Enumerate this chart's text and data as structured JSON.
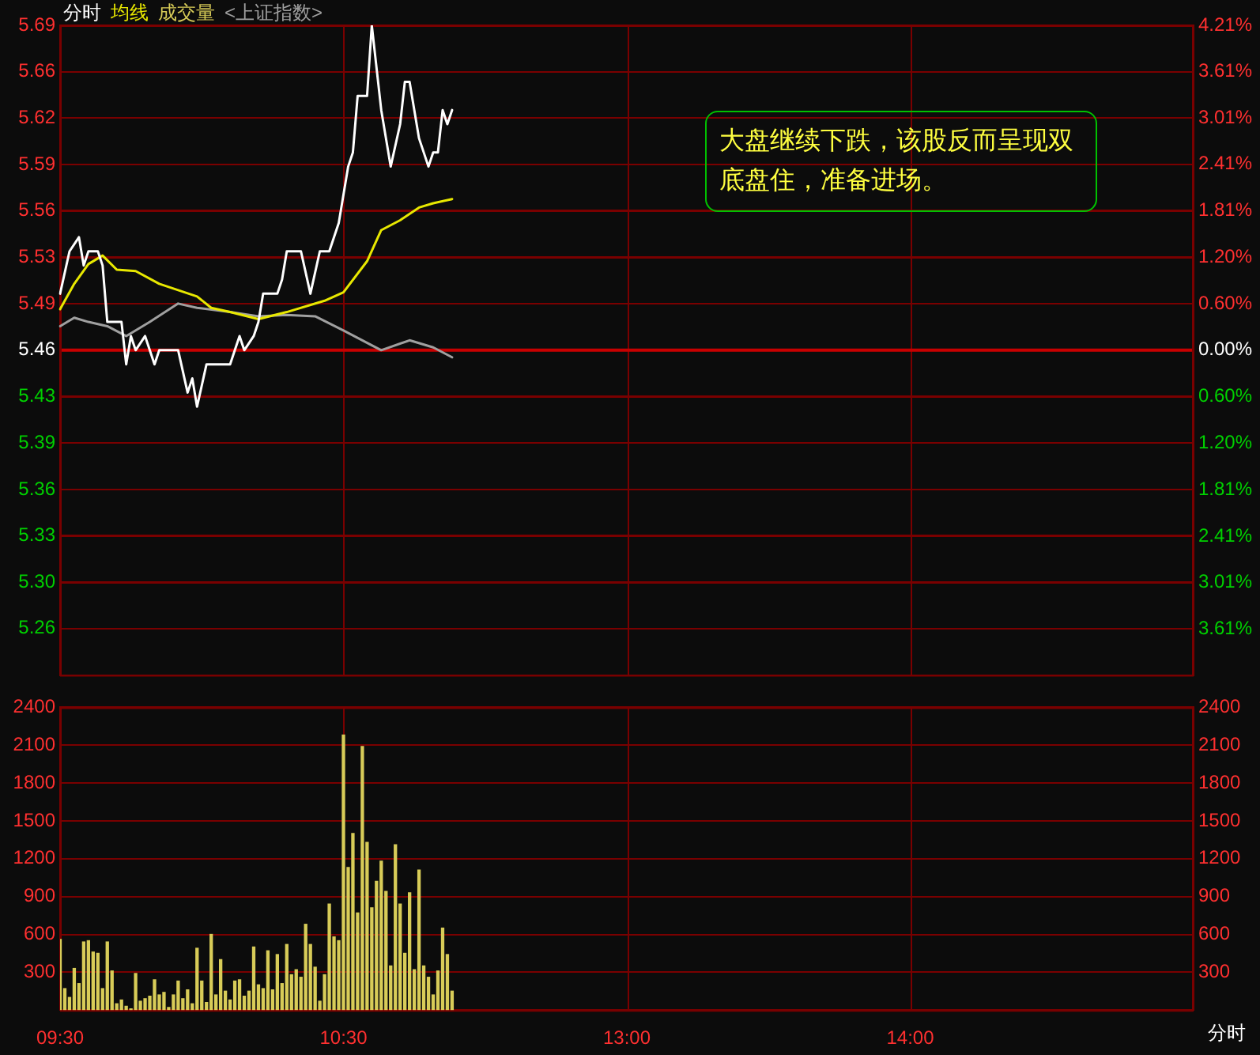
{
  "chart_data": [
    {
      "type": "line",
      "legend": "top left",
      "grid": true,
      "marker": "none",
      "line_style": "solid",
      "tick_labels": "y",
      "categories": [
        null,
        null,
        null,
        null,
        null,
        null,
        null,
        null,
        null,
        null,
        null,
        null,
        null,
        null,
        null,
        null,
        null,
        null,
        null,
        null,
        null,
        null,
        null,
        null,
        null,
        null,
        null,
        null,
        null,
        null,
        null,
        null,
        null,
        null,
        null,
        null,
        null,
        null,
        null,
        null,
        null,
        null,
        null,
        null,
        null,
        null,
        null,
        null,
        null,
        null,
        null,
        null,
        null,
        null,
        null,
        null,
        null,
        null,
        null,
        null,
        null,
        null,
        null,
        null,
        null,
        null,
        null,
        null,
        null,
        null,
        null,
        null,
        null,
        null,
        null,
        null,
        null,
        null,
        null,
        null,
        null,
        null,
        null,
        null,
        null,
        null,
        null,
        null,
        null,
        null,
        null,
        null,
        null,
        null,
        null,
        null,
        null,
        null,
        null,
        null,
        null,
        null,
        null,
        null,
        null,
        null,
        null,
        null,
        null,
        null,
        null,
        null,
        null,
        null,
        null,
        null,
        null,
        null,
        null,
        null,
        null,
        null,
        null,
        null,
        null,
        null,
        null,
        null,
        null,
        null,
        null,
        null,
        null,
        null,
        null,
        null,
        null,
        null,
        null,
        null,
        null,
        null,
        null,
        null,
        null,
        null,
        null,
        null,
        null,
        null,
        null,
        null,
        null,
        null,
        null,
        null,
        null,
        null,
        null,
        null,
        null,
        null,
        null,
        null,
        null,
        null,
        null,
        null,
        null,
        null,
        null,
        null,
        null,
        null,
        null,
        null,
        null,
        null,
        null,
        null,
        null,
        null,
        null,
        null,
        null,
        null,
        null,
        null,
        null,
        null,
        null,
        null,
        null,
        null,
        null,
        null,
        null,
        null,
        null,
        null,
        null,
        null,
        null,
        null,
        null,
        null,
        null,
        null,
        null,
        null,
        null,
        null,
        null,
        null,
        null,
        null,
        null,
        null,
        null,
        null,
        null,
        null,
        null,
        null,
        null,
        null,
        null,
        null,
        null,
        null,
        null,
        null,
        null,
        null,
        null,
        null,
        null,
        null,
        null,
        null,
        null
      ],
      "ylim": [
        5.23,
        5.69
      ],
      "yticks": [
        {
          "value": 5.69,
          "label": "5.69"
        },
        {
          "value": 5.6571,
          "label": "5.66"
        },
        {
          "value": 5.6243,
          "label": "5.62"
        },
        {
          "value": 5.5914,
          "label": "5.59"
        },
        {
          "value": 5.5586,
          "label": "5.56"
        },
        {
          "value": 5.5257,
          "label": "5.53"
        },
        {
          "value": 5.4929,
          "label": "5.49"
        },
        {
          "value": 5.46,
          "label": "5.46"
        },
        {
          "value": 5.4271,
          "label": "5.43"
        },
        {
          "value": 5.3943,
          "label": "5.39"
        },
        {
          "value": 5.3614,
          "label": "5.36"
        },
        {
          "value": 5.3286,
          "label": "5.33"
        },
        {
          "value": 5.2957,
          "label": "5.30"
        },
        {
          "value": 5.2629,
          "label": "5.26"
        }
      ],
      "y2lim": [
        -4.21,
        4.21
      ],
      "y2ticks": [
        {
          "value": 4.21,
          "label": "4.21%"
        },
        {
          "value": 3.61,
          "label": "3.61%"
        },
        {
          "value": 3.01,
          "label": "3.01%"
        },
        {
          "value": 2.41,
          "label": "2.41%"
        },
        {
          "value": 1.81,
          "label": "1.81%"
        },
        {
          "value": 1.2,
          "label": "1.20%"
        },
        {
          "value": 0.6,
          "label": "0.60%"
        },
        {
          "value": 0,
          "label": "0.00%"
        },
        {
          "value": -0.6,
          "label": "0.60%"
        },
        {
          "value": -1.2,
          "label": "1.20%"
        },
        {
          "value": -1.81,
          "label": "1.81%"
        },
        {
          "value": -2.41,
          "label": "2.41%"
        },
        {
          "value": -3.01,
          "label": "3.01%"
        },
        {
          "value": -3.61,
          "label": "3.61%"
        }
      ],
      "ref_lines": [
        {
          "axis": "y",
          "value": 5.46,
          "color": "#c80000"
        }
      ],
      "annotations": [
        "大盘继续下跌，该股反而呈现双底盘住，准备进场。"
      ],
      "series": [
        {
          "name": "分时",
          "color": "#ffffff",
          "values": [
            5.5,
            null,
            5.53,
            null,
            5.54,
            5.52,
            5.53,
            null,
            5.53,
            5.52,
            5.48,
            null,
            null,
            5.48,
            5.45,
            5.47,
            5.46,
            null,
            5.47,
            null,
            5.45,
            5.46,
            null,
            null,
            null,
            5.46,
            null,
            5.43,
            5.44,
            5.42,
            null,
            5.45,
            null,
            5.45,
            null,
            null,
            5.45,
            5.46,
            5.47,
            5.46,
            null,
            5.47,
            5.48,
            5.5,
            null,
            null,
            5.5,
            5.51,
            5.53,
            null,
            null,
            5.53,
            null,
            5.5,
            null,
            5.53,
            null,
            5.53,
            null,
            5.55,
            null,
            5.59,
            5.6,
            5.64,
            null,
            5.64,
            5.69,
            null,
            5.63,
            null,
            5.59,
            null,
            5.62,
            5.65,
            5.65,
            null,
            5.61,
            null,
            5.59,
            5.6,
            5.6,
            5.63,
            5.62,
            5.63,
            null,
            null,
            null,
            null,
            null,
            null,
            null,
            null,
            null,
            null,
            null,
            null,
            null,
            null,
            null,
            null,
            null,
            null,
            null,
            null,
            null,
            null,
            null,
            null,
            null,
            null,
            null,
            null,
            null,
            null,
            null,
            null,
            null,
            null,
            null,
            null,
            null,
            null,
            null,
            null,
            null,
            null,
            null,
            null,
            null,
            null,
            null,
            null,
            null,
            null,
            null,
            null,
            null,
            null,
            null,
            null,
            null,
            null,
            null,
            null,
            null,
            null,
            null,
            null,
            null,
            null,
            null,
            null,
            null,
            null,
            null,
            null,
            null,
            null,
            null,
            null,
            null,
            null,
            null,
            null,
            null,
            null,
            null,
            null,
            null,
            null,
            null,
            null,
            null,
            null,
            null,
            null,
            null,
            null,
            null,
            null,
            null,
            null,
            null,
            null,
            null,
            null,
            null,
            null,
            null,
            null,
            null,
            null,
            null,
            null,
            null,
            null,
            null,
            null,
            null,
            null,
            null,
            null,
            null,
            null,
            null,
            null,
            null,
            null,
            null,
            null,
            null,
            null,
            null,
            null,
            null,
            null,
            null,
            null,
            null,
            null,
            null,
            null,
            null,
            null,
            null,
            null,
            null,
            null,
            null,
            null,
            null,
            null,
            null,
            null,
            null,
            null,
            null,
            null,
            null,
            null,
            null
          ]
        },
        {
          "name": "均线",
          "color": "#e8e800",
          "values": [
            5.489,
            null,
            null,
            5.507,
            null,
            null,
            5.521,
            null,
            null,
            5.527,
            null,
            null,
            5.517,
            null,
            null,
            null,
            5.516,
            null,
            null,
            null,
            null,
            5.507,
            null,
            null,
            null,
            null,
            null,
            null,
            null,
            5.498,
            null,
            null,
            5.49,
            null,
            null,
            null,
            5.487,
            null,
            null,
            null,
            null,
            null,
            5.482,
            null,
            null,
            null,
            null,
            null,
            5.487,
            null,
            null,
            null,
            null,
            null,
            null,
            null,
            5.495,
            null,
            null,
            null,
            5.501,
            null,
            null,
            null,
            null,
            5.523,
            null,
            null,
            5.545,
            null,
            null,
            null,
            5.552,
            null,
            null,
            null,
            5.561,
            null,
            null,
            5.564,
            null,
            null,
            null,
            5.567,
            null,
            null,
            null,
            null,
            null,
            null,
            null,
            null,
            null,
            null,
            null,
            null,
            null,
            null,
            null,
            null,
            null,
            null,
            null,
            null,
            null,
            null,
            null,
            null,
            null,
            null,
            null,
            null,
            null,
            null,
            null,
            null,
            null,
            null,
            null,
            null,
            null,
            null,
            null,
            null,
            null,
            null,
            null,
            null,
            null,
            null,
            null,
            null,
            null,
            null,
            null,
            null,
            null,
            null,
            null,
            null,
            null,
            null,
            null,
            null,
            null,
            null,
            null,
            null,
            null,
            null,
            null,
            null,
            null,
            null,
            null,
            null,
            null,
            null,
            null,
            null,
            null,
            null,
            null,
            null,
            null,
            null,
            null,
            null,
            null,
            null,
            null,
            null,
            null,
            null,
            null,
            null,
            null,
            null,
            null,
            null,
            null,
            null,
            null,
            null,
            null,
            null,
            null,
            null,
            null,
            null,
            null,
            null,
            null,
            null,
            null,
            null,
            null,
            null,
            null,
            null,
            null,
            null,
            null,
            null,
            null,
            null,
            null,
            null,
            null,
            null,
            null,
            null,
            null,
            null,
            null,
            null,
            null,
            null,
            null,
            null,
            null,
            null,
            null,
            null,
            null,
            null,
            null,
            null,
            null,
            null,
            null,
            null,
            null,
            null,
            null,
            null,
            null,
            null,
            null,
            null,
            null
          ]
        },
        {
          "name": "<上证指数>",
          "color": "#a0a0a0",
          "values": [
            5.477,
            null,
            null,
            5.483,
            null,
            null,
            5.48,
            null,
            null,
            null,
            5.477,
            null,
            null,
            null,
            5.47,
            null,
            null,
            null,
            null,
            5.48,
            null,
            null,
            null,
            null,
            null,
            5.493,
            null,
            null,
            null,
            5.49,
            null,
            null,
            null,
            null,
            null,
            null,
            5.487,
            null,
            null,
            null,
            null,
            null,
            5.484,
            null,
            null,
            null,
            null,
            null,
            5.485,
            null,
            null,
            null,
            null,
            null,
            5.484,
            null,
            null,
            null,
            null,
            null,
            5.474,
            null,
            null,
            null,
            null,
            null,
            null,
            null,
            5.46,
            null,
            null,
            null,
            null,
            null,
            5.467,
            null,
            null,
            null,
            null,
            5.462,
            null,
            null,
            null,
            5.455,
            null,
            null,
            null,
            null,
            null,
            null,
            null,
            null,
            null,
            null,
            null,
            null,
            null,
            null,
            null,
            null,
            null,
            null,
            null,
            null,
            null,
            null,
            null,
            null,
            null,
            null,
            null,
            null,
            null,
            null,
            null,
            null,
            null,
            null,
            null,
            null,
            null,
            null,
            null,
            null,
            null,
            null,
            null,
            null,
            null,
            null,
            null,
            null,
            null,
            null,
            null,
            null,
            null,
            null,
            null,
            null,
            null,
            null,
            null,
            null,
            null,
            null,
            null,
            null,
            null,
            null,
            null,
            null,
            null,
            null,
            null,
            null,
            null,
            null,
            null,
            null,
            null,
            null,
            null,
            null,
            null,
            null,
            null,
            null,
            null,
            null,
            null,
            null,
            null,
            null,
            null,
            null,
            null,
            null,
            null,
            null,
            null,
            null,
            null,
            null,
            null,
            null,
            null,
            null,
            null,
            null,
            null,
            null,
            null,
            null,
            null,
            null,
            null,
            null,
            null,
            null,
            null,
            null,
            null,
            null,
            null,
            null,
            null,
            null,
            null,
            null,
            null,
            null,
            null,
            null,
            null,
            null,
            null,
            null,
            null,
            null,
            null,
            null,
            null,
            null,
            null,
            null,
            null,
            null,
            null,
            null,
            null,
            null,
            null,
            null,
            null,
            null,
            null,
            null,
            null,
            null,
            null
          ]
        }
      ]
    },
    {
      "type": "bar",
      "legend": "top left",
      "grid": true,
      "xlabel": "分时",
      "categories": [
        "09:30",
        null,
        null,
        null,
        null,
        null,
        null,
        null,
        null,
        null,
        null,
        null,
        null,
        null,
        null,
        null,
        null,
        null,
        null,
        null,
        null,
        null,
        null,
        null,
        null,
        null,
        null,
        null,
        null,
        null,
        null,
        null,
        null,
        null,
        null,
        null,
        null,
        null,
        null,
        null,
        null,
        null,
        null,
        null,
        null,
        null,
        null,
        null,
        null,
        null,
        null,
        null,
        null,
        null,
        null,
        null,
        null,
        null,
        null,
        null,
        "10:30",
        null,
        null,
        null,
        null,
        null,
        null,
        null,
        null,
        null,
        null,
        null,
        null,
        null,
        null,
        null,
        null,
        null,
        null,
        null,
        null,
        null,
        null,
        null,
        null,
        null,
        null,
        null,
        null,
        null,
        null,
        null,
        null,
        null,
        null,
        null,
        null,
        null,
        null,
        null,
        null,
        null,
        null,
        null,
        null,
        null,
        null,
        null,
        null,
        null,
        null,
        null,
        null,
        null,
        null,
        null,
        null,
        null,
        null,
        null,
        "13:00",
        null,
        null,
        null,
        null,
        null,
        null,
        null,
        null,
        null,
        null,
        null,
        null,
        null,
        null,
        null,
        null,
        null,
        null,
        null,
        null,
        null,
        null,
        null,
        null,
        null,
        null,
        null,
        null,
        null,
        null,
        null,
        null,
        null,
        null,
        null,
        null,
        null,
        null,
        null,
        null,
        null,
        null,
        null,
        null,
        null,
        null,
        null,
        null,
        null,
        null,
        null,
        null,
        null,
        null,
        null,
        null,
        null,
        null,
        null,
        "14:00",
        null,
        null,
        null,
        null,
        null,
        null,
        null,
        null,
        null,
        null,
        null,
        null,
        null,
        null,
        null,
        null,
        null,
        null,
        null,
        null,
        null,
        null,
        null,
        null,
        null,
        null,
        null,
        null,
        null,
        null,
        null,
        null,
        null,
        null,
        null,
        null,
        null,
        null,
        null,
        null,
        null,
        null,
        null,
        null,
        null,
        null,
        null,
        null,
        null,
        null,
        null,
        null,
        null,
        null,
        null,
        null,
        null,
        null,
        null,
        null
      ],
      "ylim": [
        0,
        2400
      ],
      "yticks": [
        300,
        600,
        900,
        1200,
        1500,
        1800,
        2100,
        2400
      ],
      "y2lim": [
        0,
        2400
      ],
      "y2ticks": [
        300,
        600,
        900,
        1200,
        1500,
        1800,
        2100,
        2400
      ],
      "series": [
        {
          "name": "成交量",
          "color": "#d8cc58",
          "values": [
            560,
            170,
            100,
            330,
            210,
            540,
            550,
            460,
            450,
            170,
            540,
            310,
            50,
            80,
            30,
            10,
            290,
            70,
            90,
            110,
            240,
            120,
            140,
            20,
            120,
            230,
            90,
            160,
            50,
            490,
            230,
            60,
            600,
            120,
            400,
            150,
            80,
            230,
            240,
            110,
            150,
            500,
            200,
            170,
            470,
            160,
            440,
            210,
            520,
            280,
            320,
            260,
            680,
            520,
            340,
            70,
            280,
            840,
            580,
            550,
            2180,
            1130,
            1400,
            770,
            2090,
            1330,
            810,
            1020,
            1180,
            940,
            350,
            1310,
            840,
            450,
            930,
            320,
            1110,
            350,
            260,
            120,
            310,
            650,
            440,
            150,
            null,
            null,
            null,
            null,
            null,
            null,
            null,
            null,
            null,
            null,
            null,
            null,
            null,
            null,
            null,
            null,
            null,
            null,
            null,
            null,
            null,
            null,
            null,
            null,
            null,
            null,
            null,
            null,
            null,
            null,
            null,
            null,
            null,
            null,
            null,
            null,
            null,
            null,
            null,
            null,
            null,
            null,
            null,
            null,
            null,
            null,
            null,
            null,
            null,
            null,
            null,
            null,
            null,
            null,
            null,
            null,
            null,
            null,
            null,
            null,
            null,
            null,
            null,
            null,
            null,
            null,
            null,
            null,
            null,
            null,
            null,
            null,
            null,
            null,
            null,
            null,
            null,
            null,
            null,
            null,
            null,
            null,
            null,
            null,
            null,
            null,
            null,
            null,
            null,
            null,
            null,
            null,
            null,
            null,
            null,
            null,
            null,
            null,
            null,
            null,
            null,
            null,
            null,
            null,
            null,
            null,
            null,
            null,
            null,
            null,
            null,
            null,
            null,
            null,
            null,
            null,
            null,
            null,
            null,
            null,
            null,
            null,
            null,
            null,
            null,
            null,
            null,
            null,
            null,
            null,
            null,
            null,
            null,
            null,
            null,
            null,
            null,
            null,
            null,
            null,
            null,
            null,
            null,
            null,
            null,
            null,
            null,
            null,
            null,
            null,
            null,
            null,
            null,
            null,
            null,
            null,
            null
          ]
        }
      ]
    }
  ]
}
